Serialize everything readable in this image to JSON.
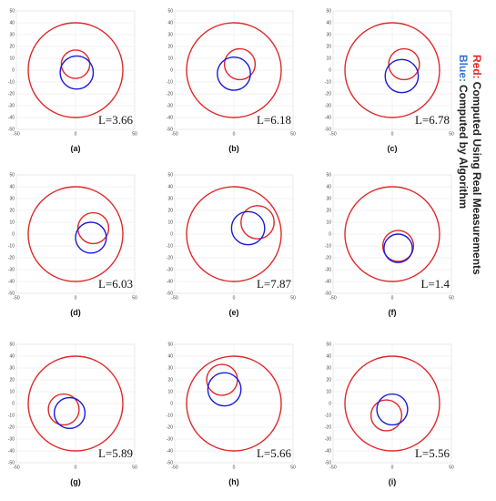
{
  "chart_data": [
    {
      "type": "circles",
      "label": "(a)",
      "annotation": "L=3.66",
      "xlim": [
        -50,
        50
      ],
      "ylim": [
        -50,
        50
      ],
      "xticks": [
        -50,
        0,
        50
      ],
      "yticks": [
        -50,
        -40,
        -30,
        -20,
        -10,
        0,
        10,
        20,
        30,
        40,
        50
      ],
      "grid": true,
      "circles": [
        {
          "color": "#e0282a",
          "x": 0,
          "y": 0,
          "r": 40
        },
        {
          "color": "#e0282a",
          "x": 0,
          "y": 5,
          "r": 12
        },
        {
          "color": "#1a1adb",
          "x": 1,
          "y": -2,
          "r": 14
        }
      ]
    },
    {
      "type": "circles",
      "label": "(b)",
      "annotation": "L=6.18",
      "xlim": [
        -50,
        50
      ],
      "ylim": [
        -50,
        50
      ],
      "xticks": [
        -50,
        0,
        50
      ],
      "yticks": [
        -50,
        -40,
        -30,
        -20,
        -10,
        0,
        10,
        20,
        30,
        40,
        50
      ],
      "grid": true,
      "circles": [
        {
          "color": "#e0282a",
          "x": 0,
          "y": 0,
          "r": 40
        },
        {
          "color": "#e0282a",
          "x": 5,
          "y": 5,
          "r": 13
        },
        {
          "color": "#1a1adb",
          "x": 0,
          "y": -3,
          "r": 14
        }
      ]
    },
    {
      "type": "circles",
      "label": "(c)",
      "annotation": "L=6.78",
      "xlim": [
        -50,
        50
      ],
      "ylim": [
        -50,
        50
      ],
      "xticks": [
        -50,
        0,
        50
      ],
      "yticks": [
        -50,
        -40,
        -30,
        -20,
        -10,
        0,
        10,
        20,
        30,
        40,
        50
      ],
      "grid": true,
      "circles": [
        {
          "color": "#e0282a",
          "x": 0,
          "y": 0,
          "r": 40
        },
        {
          "color": "#e0282a",
          "x": 10,
          "y": 5,
          "r": 13
        },
        {
          "color": "#1a1adb",
          "x": 8,
          "y": -5,
          "r": 14
        }
      ]
    },
    {
      "type": "circles",
      "label": "(d)",
      "annotation": "L=6.03",
      "xlim": [
        -50,
        50
      ],
      "ylim": [
        -50,
        50
      ],
      "xticks": [
        -50,
        0,
        50
      ],
      "yticks": [
        -50,
        -40,
        -30,
        -20,
        -10,
        0,
        10,
        20,
        30,
        40,
        50
      ],
      "grid": true,
      "circles": [
        {
          "color": "#e0282a",
          "x": 0,
          "y": 0,
          "r": 40
        },
        {
          "color": "#e0282a",
          "x": 15,
          "y": 5,
          "r": 13
        },
        {
          "color": "#1a1adb",
          "x": 13,
          "y": -3,
          "r": 13
        }
      ]
    },
    {
      "type": "circles",
      "label": "(e)",
      "annotation": "L=7.87",
      "xlim": [
        -50,
        50
      ],
      "ylim": [
        -50,
        50
      ],
      "xticks": [
        -50,
        0,
        50
      ],
      "yticks": [
        -50,
        -40,
        -30,
        -20,
        -10,
        0,
        10,
        20,
        30,
        40,
        50
      ],
      "grid": true,
      "circles": [
        {
          "color": "#e0282a",
          "x": 0,
          "y": 0,
          "r": 40
        },
        {
          "color": "#e0282a",
          "x": 20,
          "y": 10,
          "r": 14
        },
        {
          "color": "#1a1adb",
          "x": 12,
          "y": 5,
          "r": 14
        }
      ]
    },
    {
      "type": "circles",
      "label": "(f)",
      "annotation": "L=1.4",
      "xlim": [
        -50,
        50
      ],
      "ylim": [
        -50,
        50
      ],
      "xticks": [
        -50,
        0,
        50
      ],
      "yticks": [
        -50,
        -40,
        -30,
        -20,
        -10,
        0,
        10,
        20,
        30,
        40,
        50
      ],
      "grid": true,
      "circles": [
        {
          "color": "#e0282a",
          "x": 0,
          "y": 0,
          "r": 40
        },
        {
          "color": "#e0282a",
          "x": 5,
          "y": -10,
          "r": 13
        },
        {
          "color": "#1a1adb",
          "x": 5,
          "y": -12,
          "r": 12
        }
      ]
    },
    {
      "type": "circles",
      "label": "(g)",
      "annotation": "L=5.89",
      "xlim": [
        -50,
        50
      ],
      "ylim": [
        -50,
        50
      ],
      "xticks": [
        -50,
        0,
        50
      ],
      "yticks": [
        -50,
        -40,
        -30,
        -20,
        -10,
        0,
        10,
        20,
        30,
        40,
        50
      ],
      "grid": true,
      "circles": [
        {
          "color": "#e0282a",
          "x": 0,
          "y": 0,
          "r": 40
        },
        {
          "color": "#e0282a",
          "x": -10,
          "y": -5,
          "r": 13
        },
        {
          "color": "#1a1adb",
          "x": -5,
          "y": -8,
          "r": 13
        }
      ]
    },
    {
      "type": "circles",
      "label": "(h)",
      "annotation": "L=5.66",
      "xlim": [
        -50,
        50
      ],
      "ylim": [
        -50,
        50
      ],
      "xticks": [
        -50,
        0,
        50
      ],
      "yticks": [
        -50,
        -40,
        -30,
        -20,
        -10,
        0,
        10,
        20,
        30,
        40,
        50
      ],
      "grid": true,
      "circles": [
        {
          "color": "#e0282a",
          "x": 0,
          "y": 0,
          "r": 40
        },
        {
          "color": "#e0282a",
          "x": -10,
          "y": 20,
          "r": 13
        },
        {
          "color": "#1a1adb",
          "x": -8,
          "y": 12,
          "r": 14
        }
      ]
    },
    {
      "type": "circles",
      "label": "(i)",
      "annotation": "L=5.56",
      "xlim": [
        -50,
        50
      ],
      "ylim": [
        -50,
        50
      ],
      "xticks": [
        -50,
        0,
        50
      ],
      "yticks": [
        -50,
        -40,
        -30,
        -20,
        -10,
        0,
        10,
        20,
        30,
        40,
        50
      ],
      "grid": true,
      "circles": [
        {
          "color": "#e0282a",
          "x": 0,
          "y": 0,
          "r": 40
        },
        {
          "color": "#e0282a",
          "x": -5,
          "y": -10,
          "r": 13
        },
        {
          "color": "#1a1adb",
          "x": 0,
          "y": -5,
          "r": 13
        }
      ]
    }
  ],
  "legend": [
    {
      "name": "Blue:",
      "text": "Computed by Algorithm",
      "color": "#3b6fd6"
    },
    {
      "name": "Red:",
      "text": "Computed Using Real Measurements",
      "color": "#e0282a"
    }
  ]
}
